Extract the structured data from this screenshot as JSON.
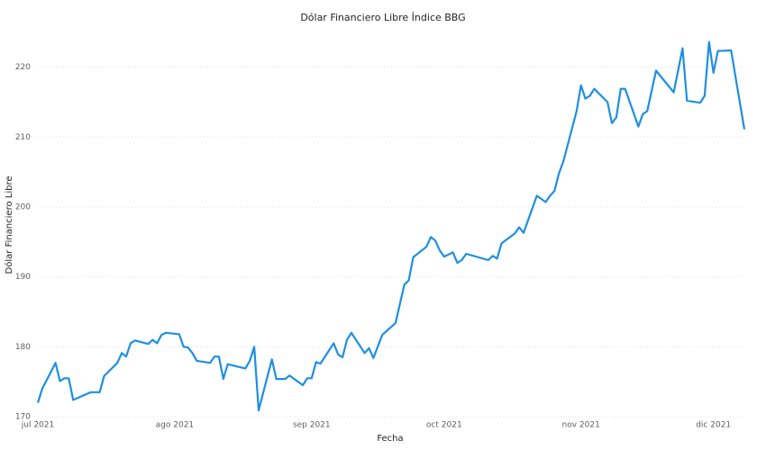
{
  "chart_data": {
    "type": "line",
    "title": "Dólar Financiero Libre Índice BBG",
    "x_label": "Fecha",
    "y_label": "Dólar Financiero Libre",
    "x": [
      0,
      1,
      4,
      5,
      6,
      7,
      8,
      12,
      14,
      15,
      18,
      19,
      20,
      21,
      22,
      25,
      26,
      27,
      28,
      29,
      32,
      33,
      34,
      35,
      36,
      39,
      40,
      41,
      42,
      43,
      47,
      48,
      49,
      50,
      53,
      54,
      56,
      57,
      60,
      61,
      62,
      63,
      64,
      67,
      68,
      69,
      70,
      71,
      74,
      75,
      76,
      78,
      81,
      83,
      84,
      85,
      88,
      89,
      90,
      91,
      92,
      94,
      95,
      96,
      97,
      102,
      103,
      104,
      105,
      108,
      109,
      110,
      113,
      115,
      116,
      117,
      118,
      119,
      122,
      123,
      124,
      125,
      126,
      129,
      130,
      131,
      132,
      133,
      136,
      137,
      138,
      140,
      144,
      146,
      147,
      150,
      151,
      152,
      153,
      154,
      157,
      158,
      160
    ],
    "values": [
      172,
      174,
      177.7,
      175.1,
      175.5,
      175.5,
      172.4,
      173.5,
      173.5,
      175.8,
      177.7,
      179.1,
      178.6,
      180.5,
      180.9,
      180.4,
      181,
      180.5,
      181.7,
      182,
      181.8,
      180,
      179.9,
      179.1,
      178,
      177.7,
      178.6,
      178.6,
      175.4,
      177.5,
      176.9,
      178,
      180,
      170.9,
      178.2,
      175.4,
      175.4,
      175.9,
      174.5,
      175.5,
      175.5,
      177.8,
      177.6,
      180.5,
      178.9,
      178.5,
      181,
      182,
      179.1,
      179.8,
      178.4,
      181.7,
      183.4,
      188.9,
      189.5,
      192.8,
      194.3,
      195.7,
      195.2,
      193.8,
      192.9,
      193.5,
      192,
      192.4,
      193.3,
      192.4,
      193,
      192.6,
      194.8,
      196.2,
      197.1,
      196.3,
      201.6,
      200.7,
      201.6,
      202.3,
      204.8,
      206.5,
      213.7,
      217.4,
      215.5,
      215.9,
      216.9,
      215,
      212,
      212.8,
      216.9,
      216.9,
      211.5,
      213.3,
      213.7,
      219.5,
      216.4,
      222.7,
      215.2,
      214.9,
      215.9,
      223.6,
      219.2,
      222.3,
      222.4,
      218.6,
      211.1
    ],
    "color": "#1e8fe1",
    "xlim": [
      0,
      160
    ],
    "xticks": [
      {
        "value": 0,
        "label": "jul 2021"
      },
      {
        "value": 31,
        "label": "ago 2021"
      },
      {
        "value": 62,
        "label": "sep 2021"
      },
      {
        "value": 92,
        "label": "oct 2021"
      },
      {
        "value": 123,
        "label": "nov 2021"
      },
      {
        "value": 153,
        "label": "dic 2021"
      }
    ],
    "ylim": [
      170,
      226
    ],
    "yticks": [
      170,
      180,
      190,
      200,
      210,
      220
    ],
    "grid": true
  }
}
